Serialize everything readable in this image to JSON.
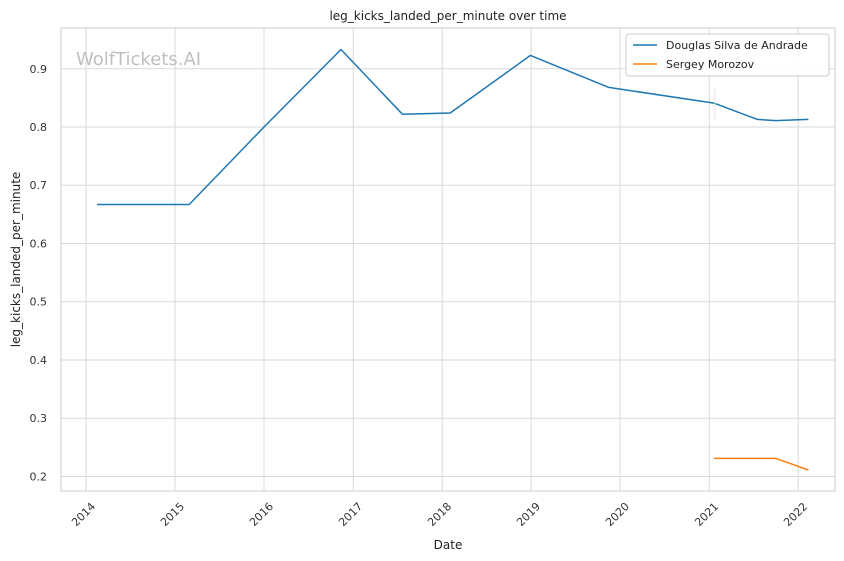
{
  "watermark": "WolfTickets.AI",
  "chart_data": {
    "type": "line",
    "title": "leg_kicks_landed_per_minute over time",
    "xlabel": "Date",
    "ylabel": "leg_kicks_landed_per_minute",
    "x_tick_labels": [
      "2014",
      "2015",
      "2016",
      "2017",
      "2018",
      "2019",
      "2020",
      "2021",
      "2022"
    ],
    "y_tick_labels": [
      "0.2",
      "0.3",
      "0.4",
      "0.5",
      "0.6",
      "0.7",
      "0.8",
      "0.9"
    ],
    "xlim": [
      "2013-09-20",
      "2022-06-01"
    ],
    "ylim": [
      0.175,
      0.97
    ],
    "grid": true,
    "legend_position": "top-right",
    "series": [
      {
        "name": "Douglas Silva de Andrade",
        "color": "#1f77b4",
        "x": [
          "2014-02-15",
          "2015-02-28",
          "2016-01-01",
          "2016-11-12",
          "2017-07-22",
          "2018-02-03",
          "2018-12-29",
          "2019-11-16",
          "2021-01-20",
          "2021-07-17",
          "2021-10-02",
          "2022-02-12"
        ],
        "y": [
          0.667,
          0.667,
          0.8,
          0.933,
          0.822,
          0.824,
          0.923,
          0.868,
          0.841,
          0.813,
          0.811,
          0.813
        ]
      },
      {
        "name": "Sergey Morozov",
        "color": "#ff7f0e",
        "x": [
          "2021-01-20",
          "2021-10-02",
          "2022-02-12"
        ],
        "y": [
          0.231,
          0.231,
          0.211
        ]
      }
    ]
  }
}
